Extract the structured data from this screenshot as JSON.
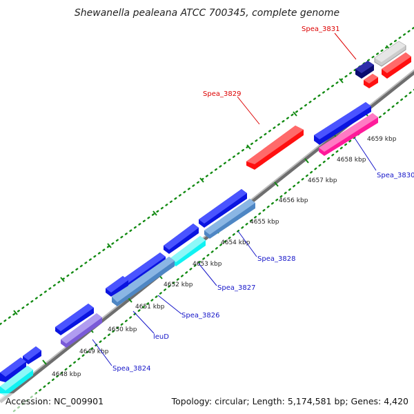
{
  "title": "Shewanella pealeana ATCC 700345, complete genome",
  "accession": "Accession: NC_009901",
  "summary": "Topology: circular; Length: 5,174,581 bp; Genes: 4,420",
  "colors": {
    "blue": "#0a14e0",
    "red": "#ff1010",
    "navy": "#0a0a6e",
    "steel": "#4e86c4",
    "cyan": "#10f2f2",
    "violet": "#7a5ad8",
    "magenta": "#ff1a9a",
    "gray": "#cccccc",
    "backbone": "#8c8c8c",
    "label_red": "#dd0000",
    "label_blue": "#1414c8",
    "tick_green": "#128a12"
  },
  "ticks": {
    "t4648": "4648 kbp",
    "t4649": "4649 kbp",
    "t4650": "4650 kbp",
    "t4651": "4651 kbp",
    "t4652": "4652 kbp",
    "t4653": "4653 kbp",
    "t4654": "4654 kbp",
    "t4655": "4655 kbp",
    "t4656": "4656 kbp",
    "t4657": "4657 kbp",
    "t4658": "4658 kbp",
    "t4659": "4659 kbp"
  },
  "labels": {
    "spea3831": "Spea_3831",
    "spea3829": "Spea_3829",
    "spea3830": "Spea_3830",
    "spea3828": "Spea_3828",
    "spea3827": "Spea_3827",
    "spea3826": "Spea_3826",
    "leuD": "leuD",
    "spea3824": "Spea_3824"
  }
}
